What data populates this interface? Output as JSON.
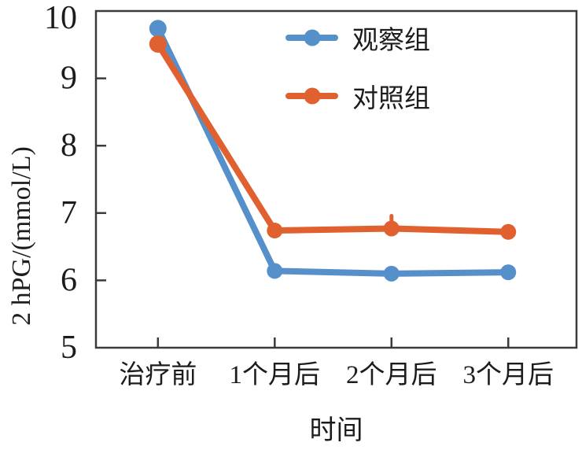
{
  "figure": {
    "background": "#ffffff",
    "frame_color": "#3b3b3b",
    "text_color": "#1c1c1c"
  },
  "chart_data": {
    "type": "line",
    "title": "",
    "xlabel": "时间",
    "ylabel": "2 hPG/(mmol/L)",
    "categories": [
      "治疗前",
      "1个月后",
      "2个月后",
      "3个月后"
    ],
    "series": [
      {
        "name": "观察组",
        "color": "#5590CB",
        "values": [
          9.74,
          6.14,
          6.1,
          6.12
        ]
      },
      {
        "name": "对照组",
        "color": "#E0602F",
        "values": [
          9.51,
          6.74,
          6.77,
          6.72
        ],
        "error_whisker_index": 2
      }
    ],
    "ylim": [
      5,
      10
    ],
    "yticks": [
      10,
      9,
      8,
      7,
      6,
      5
    ],
    "grid": false,
    "legend_position": "upper-right-inside",
    "marker": "circle",
    "line_width": 8
  }
}
